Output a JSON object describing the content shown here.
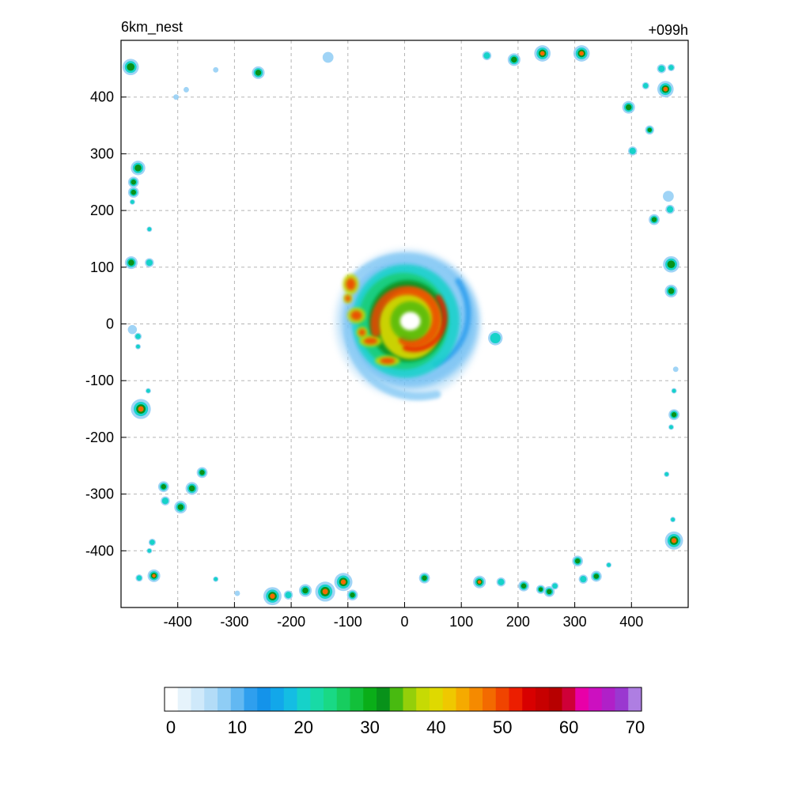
{
  "chart_data": {
    "type": "heatmap",
    "title_left": "6km_nest",
    "title_right": "+099h",
    "xlabel": "",
    "ylabel": "",
    "xlim": [
      -500,
      500
    ],
    "ylim": [
      -500,
      500
    ],
    "x_ticks": [
      -400,
      -300,
      -200,
      -100,
      0,
      100,
      200,
      300,
      400
    ],
    "y_ticks": [
      400,
      300,
      200,
      100,
      0,
      -100,
      -200,
      -300,
      -400
    ],
    "grid": true,
    "grid_style": "dashed",
    "colorbar": {
      "orientation": "horizontal",
      "placement": "bottom",
      "range": [
        0,
        70
      ],
      "ticks": [
        0,
        10,
        20,
        30,
        40,
        50,
        60,
        70
      ],
      "colors": [
        "#ffffff",
        "#e6f3fb",
        "#cfe9fa",
        "#b3dcf7",
        "#8fcdf5",
        "#62b8f2",
        "#2f9fee",
        "#1493ea",
        "#12a7ea",
        "#14bde3",
        "#16d2c9",
        "#18daa6",
        "#19d985",
        "#17cd5f",
        "#12c03a",
        "#0aae18",
        "#08921a",
        "#48ba10",
        "#94cf0a",
        "#c6da04",
        "#dfd900",
        "#efc800",
        "#f5aa00",
        "#f58a00",
        "#f36a00",
        "#f04400",
        "#ec1e00",
        "#d80000",
        "#c70000",
        "#b70000",
        "#cf0038",
        "#e800a8",
        "#cc10c0",
        "#b020c8",
        "#9a38d0",
        "#ae7ee2"
      ]
    },
    "main_storm": {
      "center": [
        10,
        5
      ],
      "eye_radius": 18,
      "max_value_band": "45-55"
    },
    "cells": [
      {
        "x": -483,
        "y": 453,
        "r": 9,
        "level": 35
      },
      {
        "x": -258,
        "y": 443,
        "r": 7,
        "level": 30
      },
      {
        "x": -135,
        "y": 470,
        "r": 6,
        "level": 12
      },
      {
        "x": -403,
        "y": 400,
        "r": 3,
        "level": 10
      },
      {
        "x": -385,
        "y": 413,
        "r": 3,
        "level": 15
      },
      {
        "x": -333,
        "y": 448,
        "r": 3,
        "level": 12
      },
      {
        "x": 145,
        "y": 473,
        "r": 5,
        "level": 20
      },
      {
        "x": 193,
        "y": 466,
        "r": 7,
        "level": 28
      },
      {
        "x": 243,
        "y": 477,
        "r": 9,
        "level": 42
      },
      {
        "x": 312,
        "y": 477,
        "r": 9,
        "level": 38
      },
      {
        "x": 453,
        "y": 450,
        "r": 5,
        "level": 25
      },
      {
        "x": 470,
        "y": 452,
        "r": 4,
        "level": 20
      },
      {
        "x": 460,
        "y": 414,
        "r": 9,
        "level": 45
      },
      {
        "x": 425,
        "y": 420,
        "r": 4,
        "level": 22
      },
      {
        "x": 395,
        "y": 382,
        "r": 7,
        "level": 30
      },
      {
        "x": 432,
        "y": 342,
        "r": 5,
        "level": 28
      },
      {
        "x": 402,
        "y": 305,
        "r": 5,
        "level": 26
      },
      {
        "x": -470,
        "y": 275,
        "r": 8,
        "level": 35
      },
      {
        "x": -478,
        "y": 250,
        "r": 6,
        "level": 30
      },
      {
        "x": -478,
        "y": 232,
        "r": 6,
        "level": 32
      },
      {
        "x": -480,
        "y": 215,
        "r": 3,
        "level": 18
      },
      {
        "x": -450,
        "y": 167,
        "r": 3,
        "level": 20
      },
      {
        "x": -482,
        "y": 108,
        "r": 7,
        "level": 28
      },
      {
        "x": -450,
        "y": 108,
        "r": 5,
        "level": 20
      },
      {
        "x": 465,
        "y": 225,
        "r": 6,
        "level": 12
      },
      {
        "x": 468,
        "y": 202,
        "r": 5,
        "level": 22
      },
      {
        "x": 440,
        "y": 184,
        "r": 6,
        "level": 30
      },
      {
        "x": 470,
        "y": 105,
        "r": 9,
        "level": 35
      },
      {
        "x": 470,
        "y": 58,
        "r": 7,
        "level": 33
      },
      {
        "x": -480,
        "y": -10,
        "r": 5,
        "level": 15
      },
      {
        "x": -470,
        "y": -22,
        "r": 4,
        "level": 26
      },
      {
        "x": -470,
        "y": -40,
        "r": 3,
        "level": 22
      },
      {
        "x": -465,
        "y": -150,
        "r": 11,
        "level": 45
      },
      {
        "x": -452,
        "y": -118,
        "r": 3,
        "level": 18
      },
      {
        "x": 478,
        "y": -80,
        "r": 3,
        "level": 16
      },
      {
        "x": 475,
        "y": -118,
        "r": 3,
        "level": 18
      },
      {
        "x": 475,
        "y": -160,
        "r": 6,
        "level": 30
      },
      {
        "x": 470,
        "y": -182,
        "r": 3,
        "level": 18
      },
      {
        "x": 462,
        "y": -265,
        "r": 3,
        "level": 20
      },
      {
        "x": 473,
        "y": -345,
        "r": 3,
        "level": 18
      },
      {
        "x": 475,
        "y": -382,
        "r": 10,
        "level": 42
      },
      {
        "x": -357,
        "y": -262,
        "r": 6,
        "level": 30
      },
      {
        "x": -375,
        "y": -290,
        "r": 7,
        "level": 33
      },
      {
        "x": -425,
        "y": -287,
        "r": 6,
        "level": 30
      },
      {
        "x": -422,
        "y": -312,
        "r": 5,
        "level": 25
      },
      {
        "x": -395,
        "y": -323,
        "r": 7,
        "level": 33
      },
      {
        "x": -445,
        "y": -385,
        "r": 4,
        "level": 22
      },
      {
        "x": -450,
        "y": -400,
        "r": 3,
        "level": 20
      },
      {
        "x": -442,
        "y": -444,
        "r": 7,
        "level": 38
      },
      {
        "x": -468,
        "y": -448,
        "r": 4,
        "level": 20
      },
      {
        "x": -333,
        "y": -450,
        "r": 3,
        "level": 22
      },
      {
        "x": -295,
        "y": -475,
        "r": 3,
        "level": 16
      },
      {
        "x": -233,
        "y": -480,
        "r": 10,
        "level": 40
      },
      {
        "x": -205,
        "y": -478,
        "r": 5,
        "level": 25
      },
      {
        "x": -175,
        "y": -470,
        "r": 7,
        "level": 33
      },
      {
        "x": -140,
        "y": -472,
        "r": 11,
        "level": 42
      },
      {
        "x": -108,
        "y": -455,
        "r": 10,
        "level": 40
      },
      {
        "x": -92,
        "y": -478,
        "r": 6,
        "level": 28
      },
      {
        "x": 35,
        "y": -448,
        "r": 6,
        "level": 30
      },
      {
        "x": 132,
        "y": -455,
        "r": 7,
        "level": 38
      },
      {
        "x": 170,
        "y": -455,
        "r": 5,
        "level": 20
      },
      {
        "x": 210,
        "y": -462,
        "r": 6,
        "level": 32
      },
      {
        "x": 240,
        "y": -468,
        "r": 5,
        "level": 28
      },
      {
        "x": 255,
        "y": -472,
        "r": 6,
        "level": 30
      },
      {
        "x": 265,
        "y": -462,
        "r": 4,
        "level": 20
      },
      {
        "x": 305,
        "y": -418,
        "r": 6,
        "level": 30
      },
      {
        "x": 315,
        "y": -450,
        "r": 5,
        "level": 25
      },
      {
        "x": 338,
        "y": -445,
        "r": 6,
        "level": 33
      },
      {
        "x": 360,
        "y": -425,
        "r": 3,
        "level": 18
      },
      {
        "x": 160,
        "y": -25,
        "r": 8,
        "level": 20
      }
    ]
  }
}
